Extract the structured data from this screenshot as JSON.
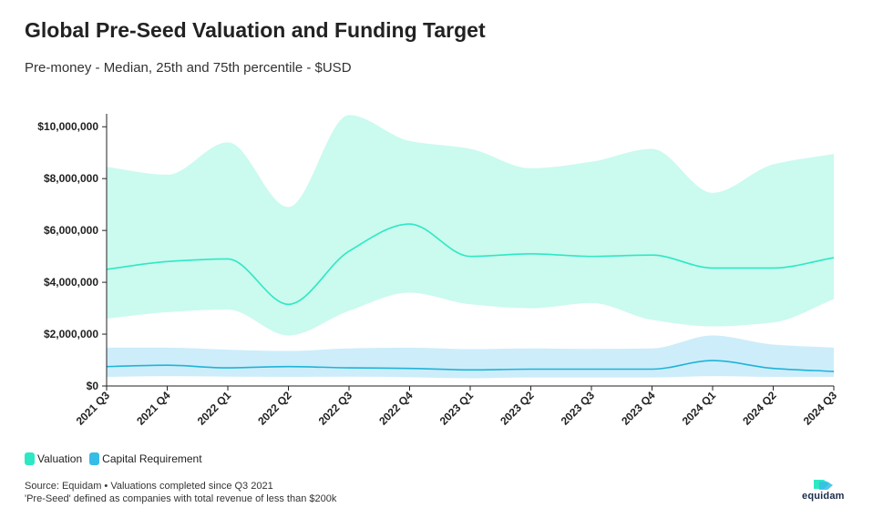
{
  "title": "Global Pre-Seed Valuation and Funding Target",
  "subtitle": "Pre-money - Median, 25th and 75th percentile - $USD",
  "legend": [
    {
      "label": "Valuation",
      "color": "#2ee8c4"
    },
    {
      "label": "Capital Requirement",
      "color": "#35bde8"
    }
  ],
  "source_line1": "Source: Equidam • Valuations completed since Q3 2021",
  "source_line2": "'Pre-Seed' defined as companies with total revenue of less than $200k",
  "logo_text": "equidam",
  "chart_data": {
    "type": "area",
    "categories": [
      "2021 Q3",
      "2021 Q4",
      "2022 Q1",
      "2022 Q2",
      "2022 Q3",
      "2022 Q4",
      "2023 Q1",
      "2023 Q2",
      "2023 Q3",
      "2023 Q4",
      "2024 Q1",
      "2024 Q2",
      "2024 Q3"
    ],
    "ylim": [
      0,
      10500000
    ],
    "yticks": [
      0,
      2000000,
      4000000,
      6000000,
      8000000,
      10000000
    ],
    "ytick_labels": [
      "$0",
      "$2,000,000",
      "$4,000,000",
      "$6,000,000",
      "$8,000,000",
      "$10,000,000"
    ],
    "grid": false,
    "legend_position": "bottom-left",
    "series": [
      {
        "name": "Valuation",
        "color": "#2ee8c4",
        "band_color": "#cbfaef",
        "median": [
          4500000,
          4800000,
          4900000,
          3150000,
          5200000,
          6250000,
          5000000,
          5100000,
          5000000,
          5050000,
          4550000,
          4550000,
          4950000
        ],
        "p25": [
          2600000,
          2850000,
          2950000,
          1950000,
          2900000,
          3600000,
          3150000,
          3000000,
          3200000,
          2550000,
          2300000,
          2450000,
          3350000
        ],
        "p75": [
          8450000,
          8150000,
          9400000,
          6900000,
          10450000,
          9450000,
          9150000,
          8400000,
          8650000,
          9150000,
          7450000,
          8550000,
          8950000
        ]
      },
      {
        "name": "Capital Requirement",
        "color": "#20b3d8",
        "band_color": "#cdedfa",
        "median": [
          750000,
          800000,
          700000,
          750000,
          700000,
          680000,
          620000,
          650000,
          650000,
          650000,
          980000,
          680000,
          560000
        ],
        "p25": [
          350000,
          380000,
          360000,
          350000,
          360000,
          340000,
          300000,
          330000,
          330000,
          330000,
          380000,
          350000,
          350000
        ],
        "p75": [
          1480000,
          1480000,
          1400000,
          1350000,
          1450000,
          1480000,
          1420000,
          1450000,
          1430000,
          1450000,
          1950000,
          1600000,
          1480000
        ]
      }
    ]
  }
}
